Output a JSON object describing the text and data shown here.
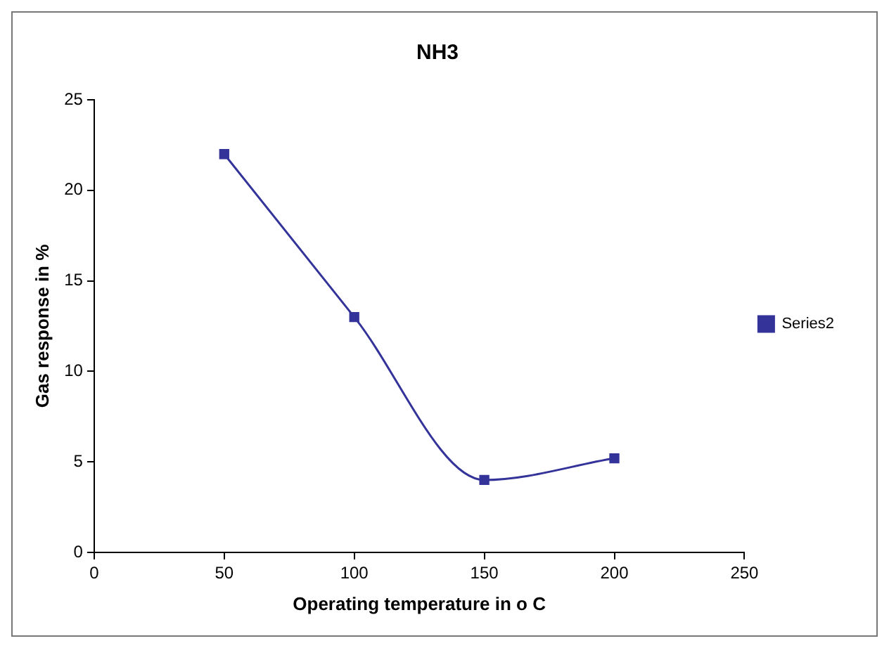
{
  "chart_data": {
    "type": "line",
    "title": "NH3",
    "xlabel": "Operating temperature in o C",
    "ylabel": "Gas response in %",
    "x": [
      50,
      100,
      150,
      200
    ],
    "series": [
      {
        "name": "Series2",
        "color": "#33339a",
        "values": [
          22,
          13,
          4,
          5.2
        ]
      }
    ],
    "xlim": [
      0,
      250
    ],
    "xticks": [
      0,
      50,
      100,
      150,
      200,
      250
    ],
    "ylim": [
      0,
      25
    ],
    "yticks": [
      0,
      5,
      10,
      15,
      20,
      25
    ],
    "grid": false,
    "legend": "right",
    "marker": "square",
    "line_style": "solid"
  }
}
